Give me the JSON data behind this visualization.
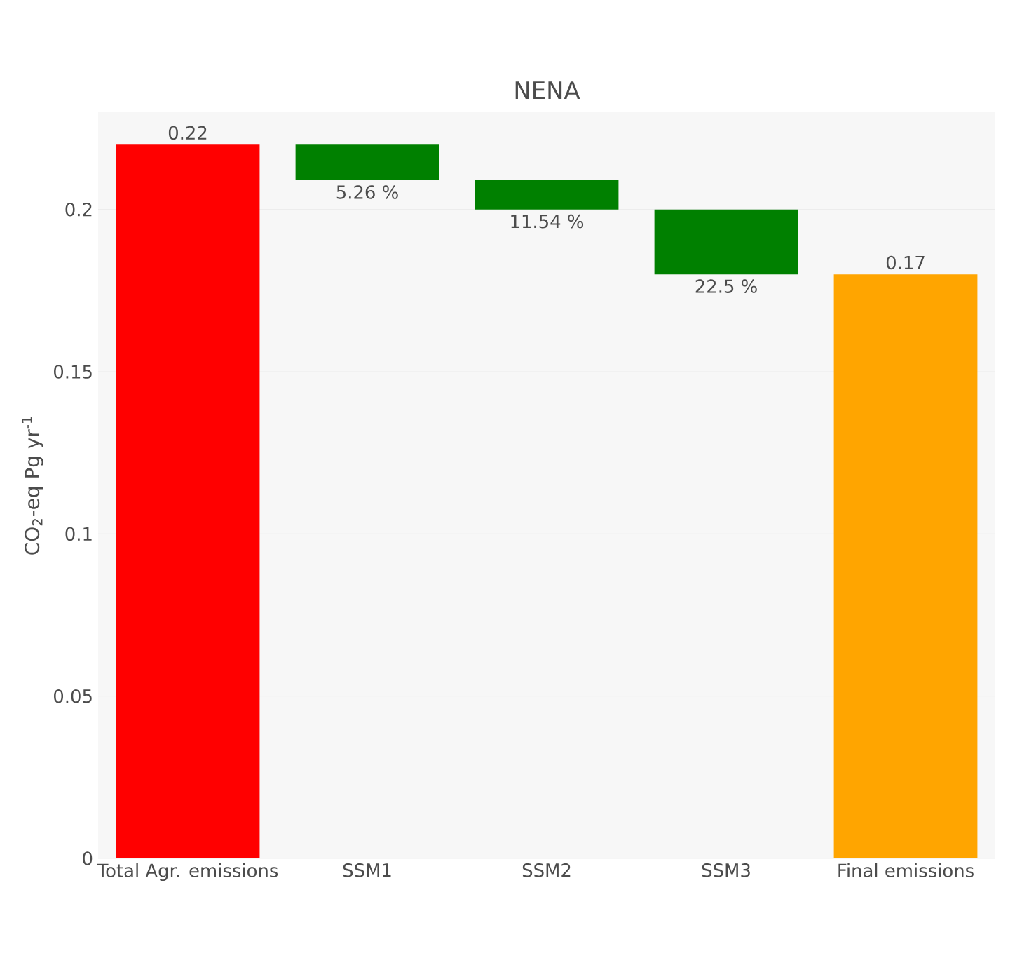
{
  "chart_data": {
    "type": "bar",
    "title": "NENA",
    "ylabel": "CO$_{2}$-eq Pg yr$^{-1}$",
    "categories": [
      "Total Agr. emissions",
      "SSM1",
      "SSM2",
      "SSM3",
      "Final emissions"
    ],
    "values": [
      0.22,
      0.011,
      0.009,
      0.02,
      0.18
    ],
    "base": [
      0,
      0.209,
      0.2,
      0.18,
      0
    ],
    "colors": [
      "#ff0000",
      "#008000",
      "#008000",
      "#008000",
      "#ffa500"
    ],
    "value_labels": [
      "0.22",
      null,
      null,
      null,
      null
    ],
    "annotations": [
      {
        "text": "5.26 %",
        "x": "SSM1",
        "y": 0.209
      },
      {
        "text": "11.54 %",
        "x": "SSM2",
        "y": 0.2
      },
      {
        "text": "22.5 %",
        "x": "SSM3",
        "y": 0.18
      },
      {
        "text": "0.17",
        "x": "Final emissions",
        "y": 0.18
      }
    ],
    "ylim": [
      0,
      0.23
    ],
    "yticks": [
      0,
      0.05,
      0.1,
      0.15,
      0.2
    ],
    "grid": "y"
  }
}
